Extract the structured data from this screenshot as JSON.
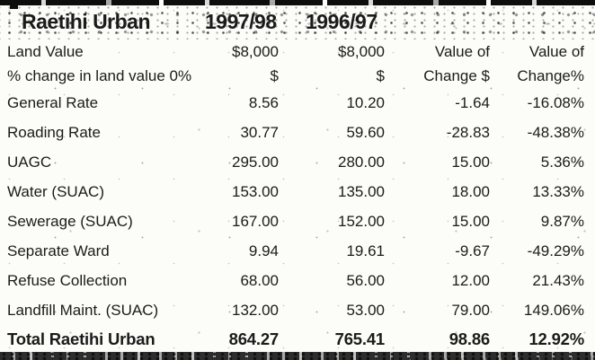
{
  "colors": {
    "paper": "#fcfcf8",
    "ink": "#1b1b1b",
    "band_ink": "#0d0d0d"
  },
  "title_row": {
    "title": "Raetihi Urban",
    "year_col_1": "1997/98",
    "year_col_2": "1996/97"
  },
  "header_rows": [
    {
      "label": "Land Value",
      "v1": "$8,000",
      "v2": "$8,000",
      "v3": "Value of",
      "v4": "Value of"
    },
    {
      "label": "% change in land value 0%",
      "v1": "$",
      "v2": "$",
      "v3": "Change $",
      "v4": "Change%"
    }
  ],
  "rows": [
    {
      "label": "General Rate",
      "v1": "8.56",
      "v2": "10.20",
      "v3": "-1.64",
      "v4": "-16.08%"
    },
    {
      "label": "Roading Rate",
      "v1": "30.77",
      "v2": "59.60",
      "v3": "-28.83",
      "v4": "-48.38%"
    },
    {
      "label": "UAGC",
      "v1": "295.00",
      "v2": "280.00",
      "v3": "15.00",
      "v4": "5.36%"
    },
    {
      "label": "Water (SUAC)",
      "v1": "153.00",
      "v2": "135.00",
      "v3": "18.00",
      "v4": "13.33%"
    },
    {
      "label": "Sewerage (SUAC)",
      "v1": "167.00",
      "v2": "152.00",
      "v3": "15.00",
      "v4": "9.87%"
    },
    {
      "label": "Separate Ward",
      "v1": "9.94",
      "v2": "19.61",
      "v3": "-9.67",
      "v4": "-49.29%"
    },
    {
      "label": "Refuse Collection",
      "v1": "68.00",
      "v2": "56.00",
      "v3": "12.00",
      "v4": "21.43%"
    },
    {
      "label": "Landfill Maint. (SUAC)",
      "v1": "132.00",
      "v2": "53.00",
      "v3": "79.00",
      "v4": "149.06%"
    }
  ],
  "total_row": {
    "label": "Total Raetihi Urban",
    "v1": "864.27",
    "v2": "765.41",
    "v3": "98.86",
    "v4": "12.92%"
  }
}
